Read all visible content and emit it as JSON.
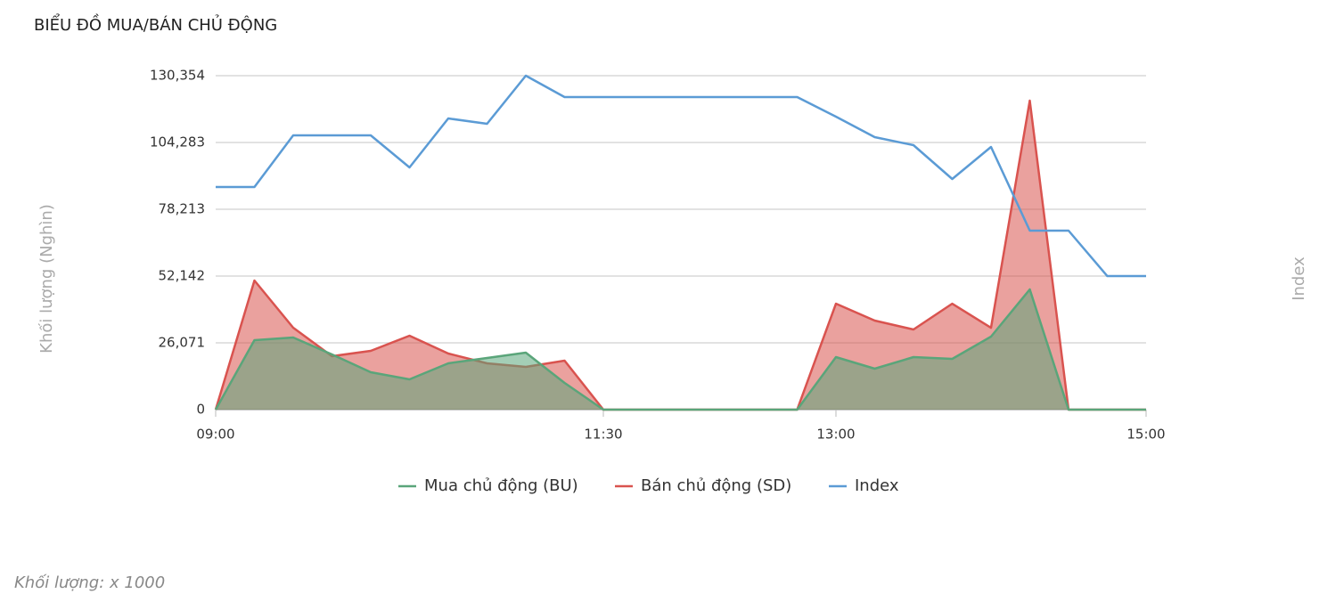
{
  "chart_data": {
    "type": "area",
    "title": "BIỂU ĐỒ MUA/BÁN CHỦ ĐỘNG",
    "ylabel": "Khối lượng (Nghìn)",
    "y2label": "Index",
    "note": "Khối lượng: x 1000",
    "x": [
      "09:00",
      "09:15",
      "09:30",
      "09:45",
      "10:00",
      "10:15",
      "10:30",
      "10:45",
      "11:00",
      "11:15",
      "11:30",
      "11:45",
      "12:00",
      "12:15",
      "12:30",
      "12:45",
      "13:00",
      "13:15",
      "13:30",
      "13:45",
      "14:00",
      "14:15",
      "14:30",
      "14:45",
      "15:00"
    ],
    "xlim": [
      "09:00",
      "15:00"
    ],
    "xticks": [
      "09:00",
      "11:30",
      "13:00",
      "15:00"
    ],
    "ylim": [
      0,
      130354
    ],
    "yticks": [
      0,
      {
        "value": 26071,
        "label": "26,071"
      },
      {
        "value": 52142,
        "label": "52,142"
      },
      {
        "value": 78213,
        "label": "78,213"
      },
      {
        "value": 104283,
        "label": "104,283"
      },
      {
        "value": 130354,
        "label": "130,354"
      }
    ],
    "y2lim": [
      0,
      130354
    ],
    "grid": true,
    "series": [
      {
        "name": "Mua chủ động (BU)",
        "color": "#5aa57a",
        "values": [
          0,
          27110,
          28160,
          21550,
          14600,
          11820,
          18080,
          20160,
          22250,
          10430,
          0,
          0,
          0,
          0,
          0,
          0,
          20510,
          15990,
          20510,
          19810,
          28500,
          46930,
          0,
          0,
          0
        ]
      },
      {
        "name": "Bán chủ động (SD)",
        "color": "#d9534f",
        "values": [
          0,
          50400,
          31980,
          20860,
          22940,
          28850,
          21900,
          18080,
          16680,
          19120,
          0,
          0,
          0,
          0,
          0,
          0,
          41360,
          34760,
          31280,
          41360,
          31980,
          120620,
          0,
          0,
          0
        ]
      },
      {
        "name": "Index",
        "color": "#5b9bd5",
        "axis": "y2",
        "values": [
          86900,
          86900,
          107060,
          107060,
          107060,
          94550,
          113670,
          111580,
          130354,
          122010,
          122010,
          122010,
          122010,
          122010,
          122010,
          122010,
          114360,
          106370,
          103240,
          90030,
          102540,
          69870,
          69870,
          52140,
          52140
        ]
      }
    ]
  }
}
